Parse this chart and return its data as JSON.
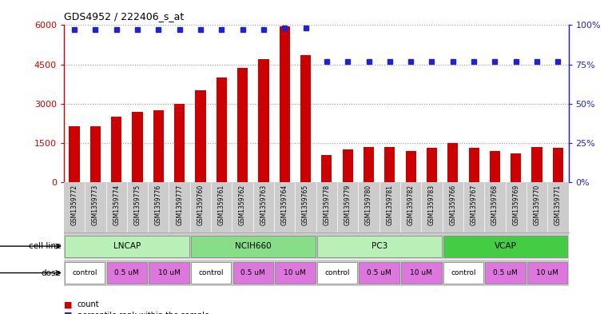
{
  "title": "GDS4952 / 222406_s_at",
  "samples": [
    "GSM1359772",
    "GSM1359773",
    "GSM1359774",
    "GSM1359775",
    "GSM1359776",
    "GSM1359777",
    "GSM1359760",
    "GSM1359761",
    "GSM1359762",
    "GSM1359763",
    "GSM1359764",
    "GSM1359765",
    "GSM1359778",
    "GSM1359779",
    "GSM1359780",
    "GSM1359781",
    "GSM1359782",
    "GSM1359783",
    "GSM1359766",
    "GSM1359767",
    "GSM1359768",
    "GSM1359769",
    "GSM1359770",
    "GSM1359771"
  ],
  "counts": [
    2150,
    2150,
    2500,
    2700,
    2750,
    3000,
    3500,
    4000,
    4350,
    4700,
    5950,
    4850,
    1050,
    1250,
    1350,
    1350,
    1200,
    1300,
    1500,
    1300,
    1200,
    1100,
    1350,
    1300
  ],
  "percentile_ranks": [
    97,
    97,
    97,
    97,
    97,
    97,
    97,
    97,
    97,
    97,
    98,
    98,
    77,
    77,
    77,
    77,
    77,
    77,
    77,
    77,
    77,
    77,
    77,
    77
  ],
  "cell_lines": [
    {
      "name": "LNCAP",
      "start": 0,
      "end": 6,
      "color": "#b8f0b8"
    },
    {
      "name": "NCIH660",
      "start": 6,
      "end": 12,
      "color": "#88dd88"
    },
    {
      "name": "PC3",
      "start": 12,
      "end": 18,
      "color": "#b8f0b8"
    },
    {
      "name": "VCAP",
      "start": 18,
      "end": 24,
      "color": "#44cc44"
    }
  ],
  "doses": [
    {
      "name": "control",
      "start": 0,
      "end": 2,
      "color": "#ffffff"
    },
    {
      "name": "0.5 uM",
      "start": 2,
      "end": 4,
      "color": "#ee88ee"
    },
    {
      "name": "10 uM",
      "start": 4,
      "end": 6,
      "color": "#ee88ee"
    },
    {
      "name": "control",
      "start": 6,
      "end": 8,
      "color": "#ffffff"
    },
    {
      "name": "0.5 uM",
      "start": 8,
      "end": 10,
      "color": "#ee88ee"
    },
    {
      "name": "10 uM",
      "start": 10,
      "end": 12,
      "color": "#ee88ee"
    },
    {
      "name": "control",
      "start": 12,
      "end": 14,
      "color": "#ffffff"
    },
    {
      "name": "0.5 uM",
      "start": 14,
      "end": 16,
      "color": "#ee88ee"
    },
    {
      "name": "10 uM",
      "start": 16,
      "end": 18,
      "color": "#ee88ee"
    },
    {
      "name": "control",
      "start": 18,
      "end": 20,
      "color": "#ffffff"
    },
    {
      "name": "0.5 uM",
      "start": 20,
      "end": 22,
      "color": "#ee88ee"
    },
    {
      "name": "10 uM",
      "start": 22,
      "end": 24,
      "color": "#ee88ee"
    }
  ],
  "bar_color": "#cc0000",
  "dot_color": "#2222cc",
  "left_yaxis": {
    "min": 0,
    "max": 6000,
    "ticks": [
      0,
      1500,
      3000,
      4500,
      6000
    ],
    "labels": [
      "0",
      "1500",
      "3000",
      "4500",
      "6000"
    ]
  },
  "right_yaxis": {
    "min": 0,
    "max": 100,
    "ticks": [
      0,
      25,
      50,
      75,
      100
    ],
    "labels": [
      "0%",
      "25%",
      "50%",
      "75%",
      "100%"
    ]
  },
  "bg_color": "#ffffff",
  "grid_color": "#999999",
  "sample_bg": "#cccccc"
}
